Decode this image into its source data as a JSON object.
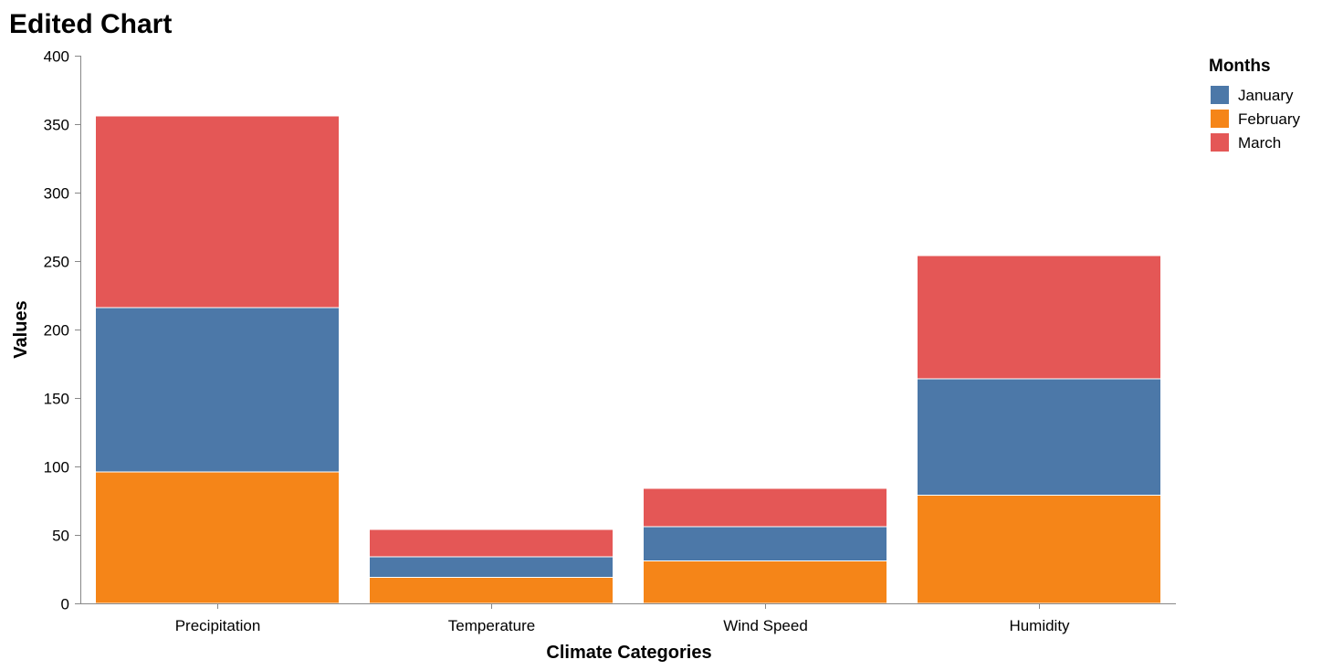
{
  "chart_data": {
    "type": "bar",
    "stacked": true,
    "title": "Edited Chart",
    "xlabel": "Climate Categories",
    "ylabel": "Values",
    "ylim": [
      0,
      400
    ],
    "yticks": [
      0,
      50,
      100,
      150,
      200,
      250,
      300,
      350,
      400
    ],
    "grid": false,
    "categories": [
      "Precipitation",
      "Temperature",
      "Wind Speed",
      "Humidity"
    ],
    "stack_order": [
      "February",
      "January",
      "March"
    ],
    "series": [
      {
        "name": "January",
        "color": "#4c78a8",
        "values": [
          120,
          15,
          25,
          85
        ]
      },
      {
        "name": "February",
        "color": "#f58518",
        "values": [
          96,
          19,
          31,
          79
        ]
      },
      {
        "name": "March",
        "color": "#e45756",
        "values": [
          140,
          20,
          28,
          90
        ]
      }
    ],
    "legend": {
      "title": "Months",
      "placement": "top-right",
      "items": [
        "January",
        "February",
        "March"
      ]
    }
  }
}
